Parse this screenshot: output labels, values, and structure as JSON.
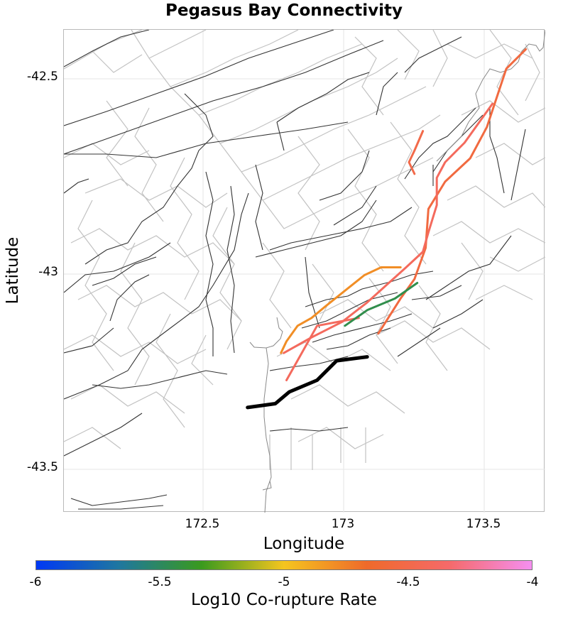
{
  "title": "Pegasus Bay Connectivity",
  "axes": {
    "xlabel": "Longitude",
    "ylabel": "Latitude",
    "xticks": [
      "172.5",
      "173",
      "173.5"
    ],
    "yticks": [
      "-42.5",
      "-43",
      "-43.5"
    ],
    "xlim": [
      171.99,
      173.72
    ],
    "ylim": [
      -43.61,
      -42.37
    ],
    "grid": true
  },
  "colorbar": {
    "label": "Log10 Co-rupture Rate",
    "ticks": [
      "-6",
      "-5.5",
      "-5",
      "-4.5",
      "-4"
    ],
    "range": [
      -6,
      -4
    ],
    "stops": [
      "#0038f5",
      "#1f77a0",
      "#3a9a1e",
      "#f5c51f",
      "#ef6a2a",
      "#f56a6a",
      "#f58ff0"
    ]
  },
  "map": {
    "coastline_color": "#888888",
    "background_fault_color": "#c2c2c2",
    "major_fault_color": "#333333",
    "selected_rupture_color": "#000000"
  },
  "chart_data": {
    "type": "map",
    "title": "Pegasus Bay Connectivity",
    "xlabel": "Longitude",
    "ylabel": "Latitude",
    "color_scale": "Log10 Co-rupture Rate",
    "source_fault": {
      "name": "selected fault (black)",
      "path": [
        [
          172.65,
          -43.34
        ],
        [
          172.75,
          -43.33
        ],
        [
          172.8,
          -43.3
        ],
        [
          172.9,
          -43.27
        ],
        [
          172.97,
          -43.22
        ],
        [
          173.08,
          -43.21
        ]
      ]
    },
    "connected_faults": [
      {
        "log10_rate": -4.55,
        "path": [
          [
            173.65,
            -42.42
          ],
          [
            173.58,
            -42.47
          ],
          [
            173.51,
            -42.62
          ],
          [
            173.45,
            -42.7
          ],
          [
            173.36,
            -42.76
          ],
          [
            173.3,
            -42.83
          ],
          [
            173.29,
            -42.93
          ],
          [
            173.25,
            -43.01
          ],
          [
            173.2,
            -43.06
          ],
          [
            173.12,
            -43.15
          ]
        ]
      },
      {
        "log10_rate": -4.4,
        "path": [
          [
            173.53,
            -42.56
          ],
          [
            173.43,
            -42.66
          ],
          [
            173.36,
            -42.71
          ],
          [
            173.33,
            -42.75
          ],
          [
            173.33,
            -42.82
          ],
          [
            173.3,
            -42.89
          ],
          [
            173.28,
            -42.94
          ],
          [
            173.22,
            -42.98
          ],
          [
            173.08,
            -43.07
          ],
          [
            172.99,
            -43.12
          ],
          [
            172.88,
            -43.16
          ],
          [
            172.78,
            -43.2
          ]
        ]
      },
      {
        "log10_rate": -4.5,
        "path": [
          [
            173.25,
            -42.74
          ],
          [
            173.23,
            -42.71
          ],
          [
            173.25,
            -42.68
          ],
          [
            173.28,
            -42.63
          ]
        ]
      },
      {
        "log10_rate": -4.8,
        "path": [
          [
            173.2,
            -42.98
          ],
          [
            173.13,
            -42.98
          ],
          [
            173.07,
            -43.0
          ],
          [
            173.0,
            -43.04
          ],
          [
            172.93,
            -43.08
          ],
          [
            172.88,
            -43.11
          ],
          [
            172.83,
            -43.13
          ],
          [
            172.79,
            -43.17
          ],
          [
            172.77,
            -43.2
          ]
        ]
      },
      {
        "log10_rate": -4.4,
        "path": [
          [
            173.05,
            -43.11
          ],
          [
            172.9,
            -43.13
          ],
          [
            172.79,
            -43.27
          ]
        ]
      },
      {
        "log10_rate": -5.45,
        "path": [
          [
            173.26,
            -43.02
          ],
          [
            173.18,
            -43.06
          ],
          [
            173.08,
            -43.09
          ],
          [
            173.0,
            -43.13
          ]
        ]
      }
    ]
  }
}
